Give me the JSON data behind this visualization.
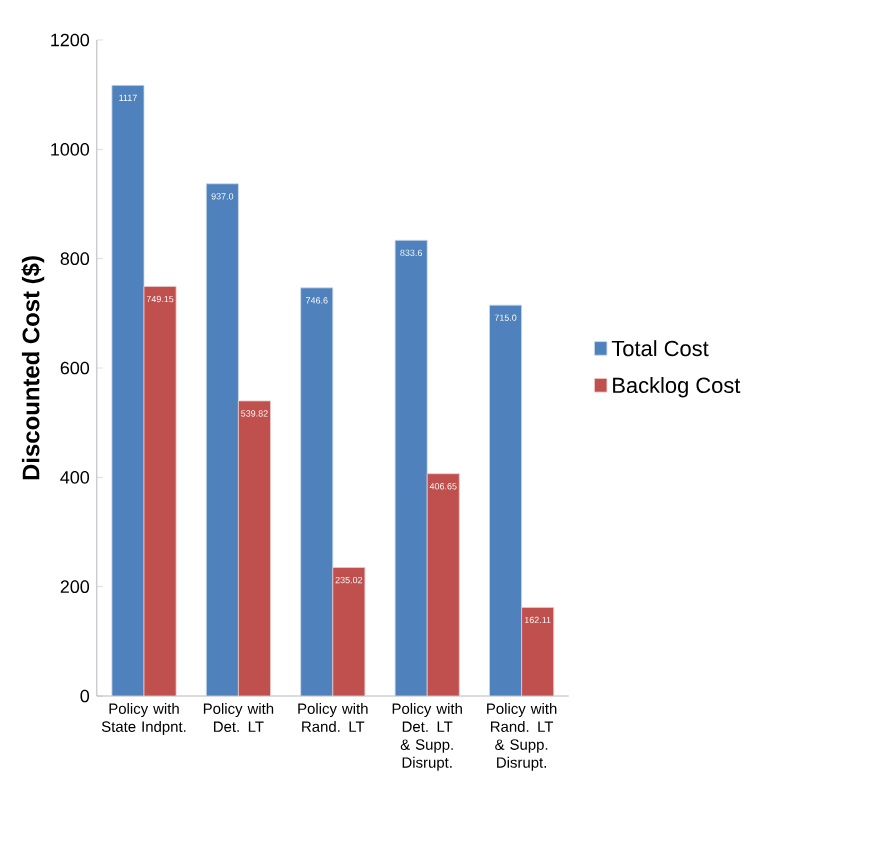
{
  "chart_data": {
    "type": "bar",
    "ylabel": "Discounted Cost ($)",
    "categories": [
      "Policy with State Indpnt.",
      "Policy with Det. LT",
      "Policy with Rand. LT",
      "Policy with Det. LT & Supp. Disrupt.",
      "Policy with Rand. LT & Supp. Disrupt."
    ],
    "series": [
      {
        "name": "Total Cost",
        "color": "#4f81bd",
        "values": [
          1117,
          937.0,
          746.6,
          833.6,
          715.0
        ],
        "value_labels": [
          "1117",
          "937.0",
          "746.6",
          "833.6",
          "715.0"
        ]
      },
      {
        "name": "Backlog Cost",
        "color": "#c0504d",
        "values": [
          749.15,
          539.82,
          235.02,
          406.65,
          162.11
        ],
        "value_labels": [
          "749.15",
          "539.82",
          "235.02",
          "406.65",
          "162.11"
        ]
      }
    ],
    "ylim": [
      0,
      1200
    ],
    "yticks": [
      0,
      200,
      400,
      600,
      800,
      1000,
      1200
    ],
    "grid": false,
    "legend": "right"
  }
}
